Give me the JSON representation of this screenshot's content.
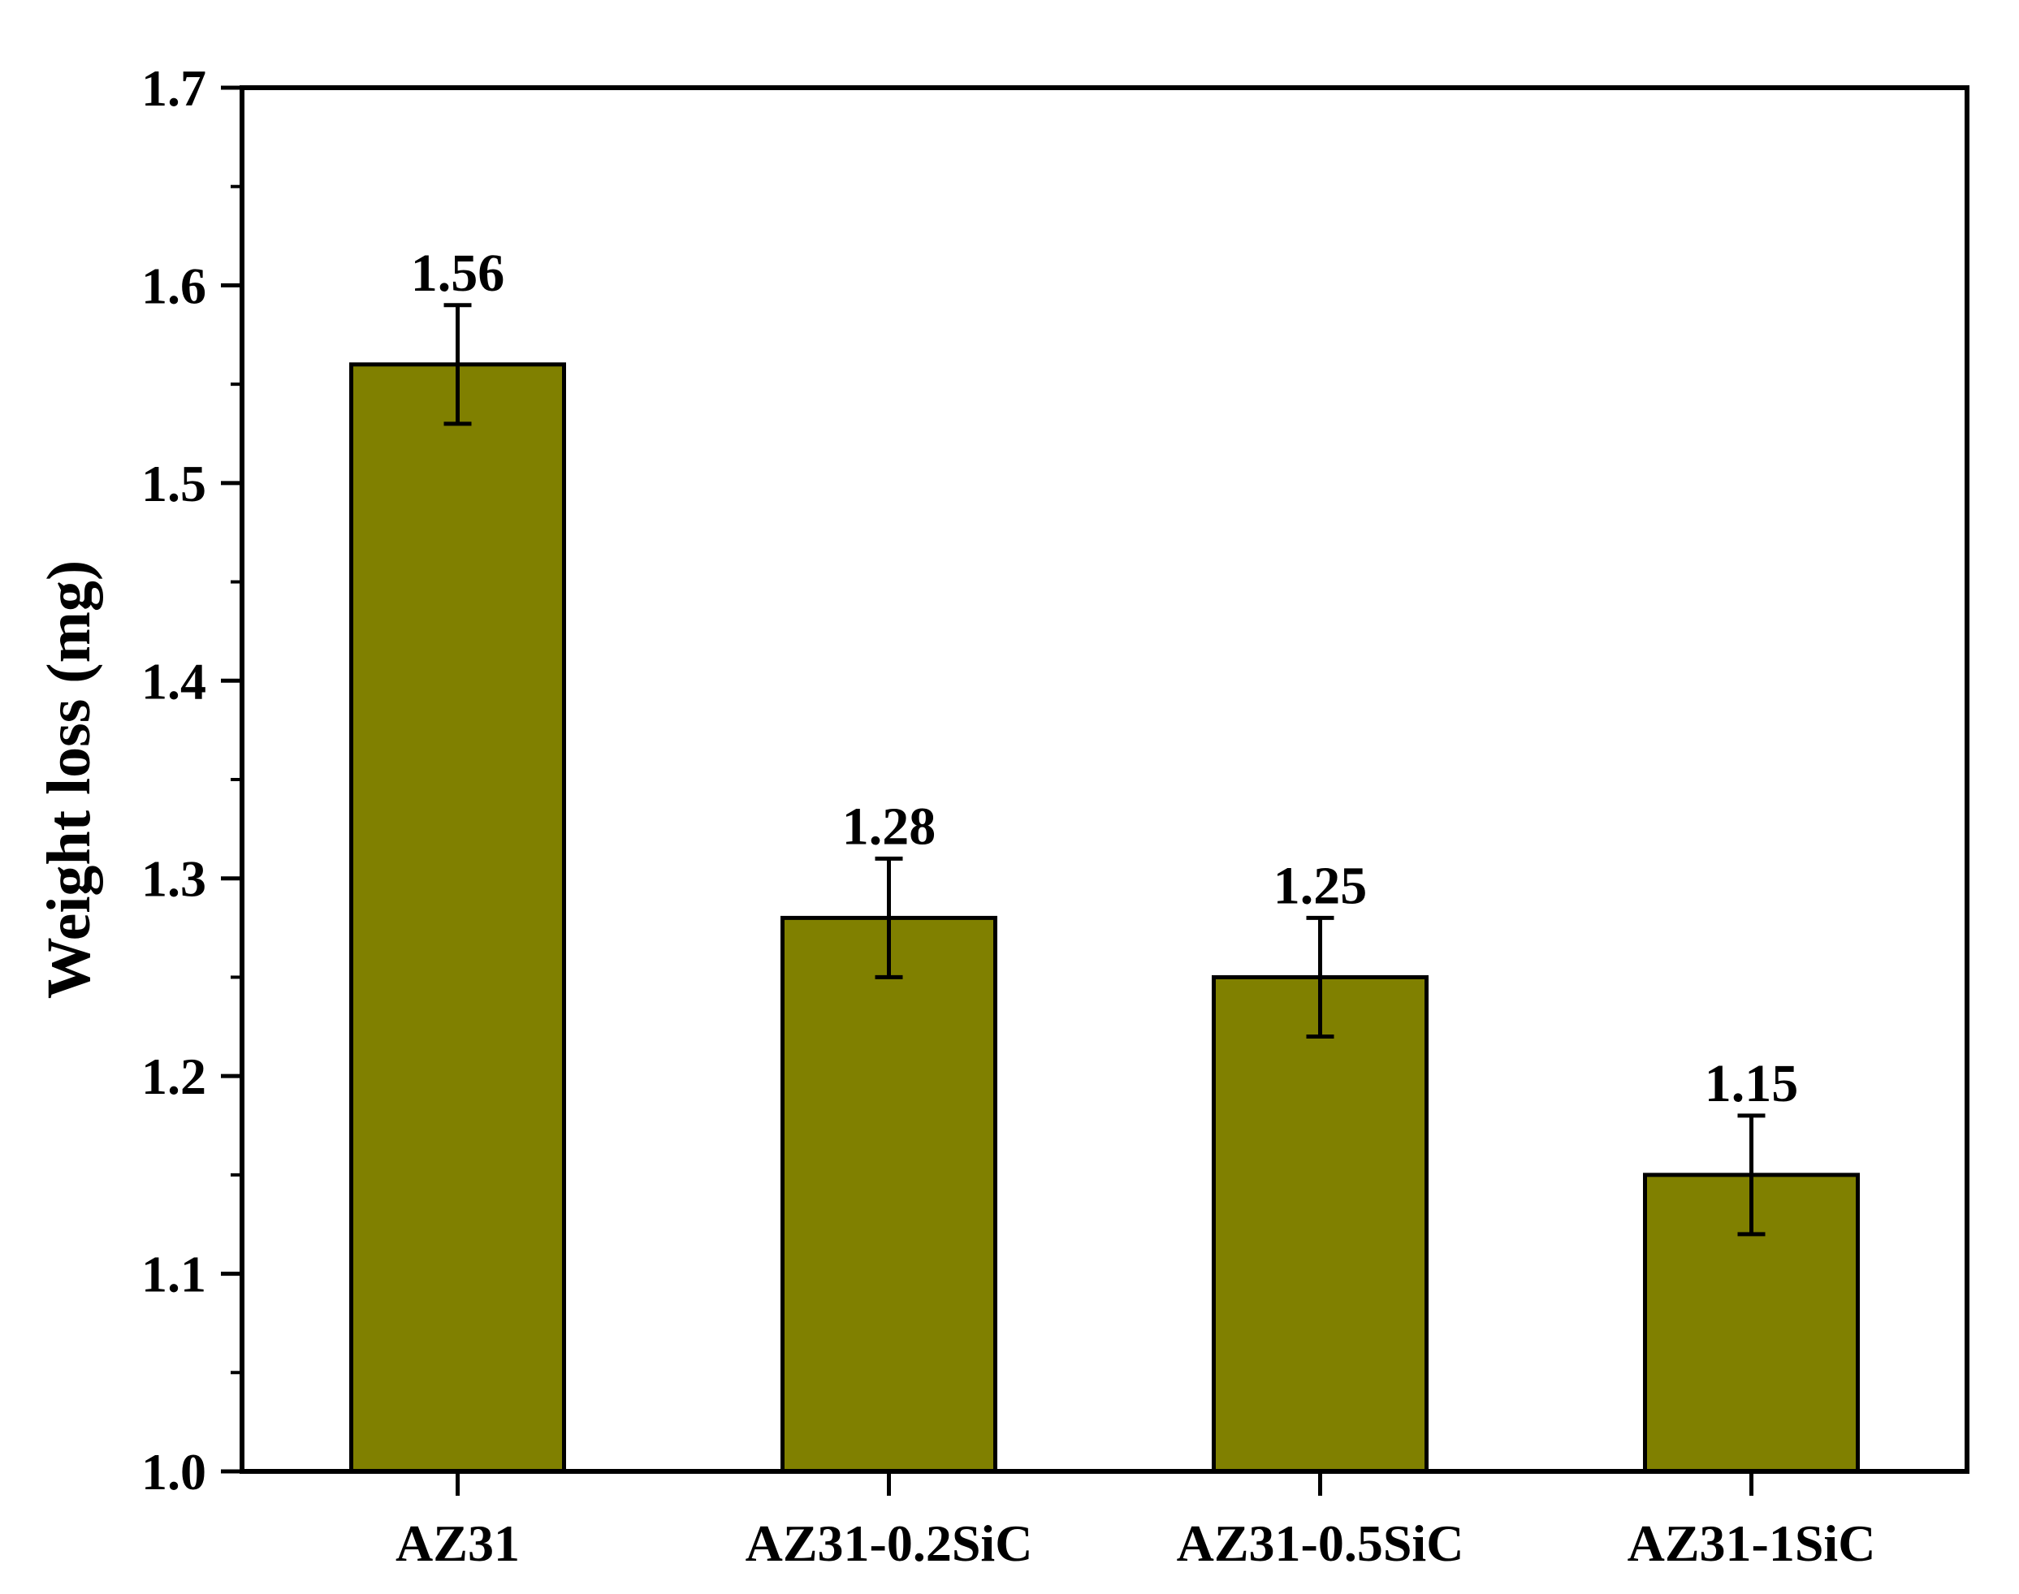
{
  "chart_data": {
    "type": "bar",
    "title": "",
    "xlabel": "",
    "ylabel": "Weight loss (mg)",
    "ylim": [
      1.0,
      1.7
    ],
    "yticks": [
      "1.0",
      "1.1",
      "1.2",
      "1.3",
      "1.4",
      "1.5",
      "1.6",
      "1.7"
    ],
    "categories": [
      "AZ31",
      "AZ31-0.2SiC",
      "AZ31-0.5SiC",
      "AZ31-1SiC"
    ],
    "values": [
      1.56,
      1.28,
      1.25,
      1.15
    ],
    "value_labels": [
      "1.56",
      "1.28",
      "1.25",
      "1.15"
    ],
    "error": [
      0.03,
      0.03,
      0.03,
      0.03
    ],
    "bar_color": "#808000",
    "grid": false,
    "legend": false
  }
}
